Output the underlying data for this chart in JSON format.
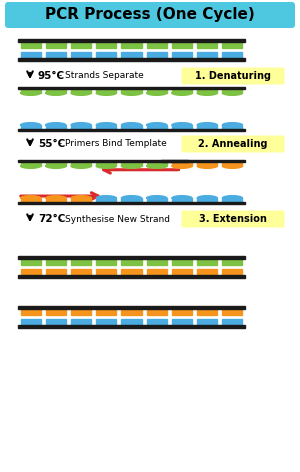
{
  "title": "PCR Process (One Cycle)",
  "title_bg": "#4DC8E0",
  "bg_color": "#FFFFFF",
  "steps": [
    {
      "temp": "95°C",
      "desc": " - Strands Separate",
      "label": "1. Denaturing",
      "label_bg": "#FFFF99"
    },
    {
      "temp": "55°C",
      "desc": " - Primers Bind Template",
      "label": "2. Annealing",
      "label_bg": "#FFFF99"
    },
    {
      "temp": "72°C",
      "desc": " - Synthesise New Strand",
      "label": "3. Extension",
      "label_bg": "#FFFF99"
    }
  ],
  "black": "#1a1a1a",
  "green": "#7DC242",
  "blue": "#4AACE0",
  "orange": "#F7941D",
  "white": "#FFFFFF",
  "red": "#D92B2B",
  "light_yellow": "#FFFF99"
}
